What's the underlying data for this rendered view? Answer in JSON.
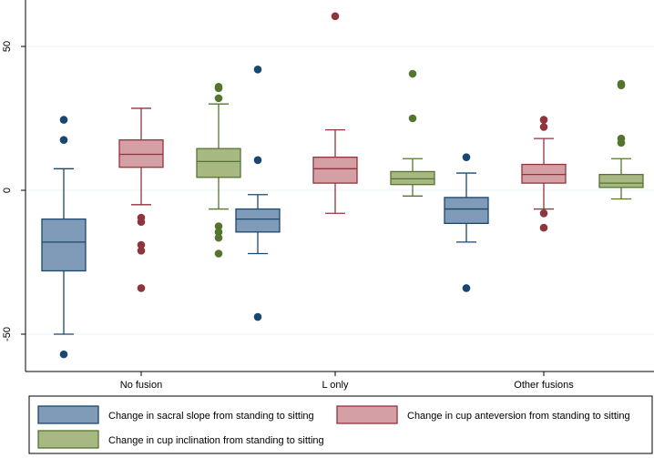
{
  "chart_data": {
    "type": "boxplot",
    "title": "",
    "xlabel": "",
    "ylabel": "",
    "ylim": [
      -62,
      66
    ],
    "yticks": [
      -50,
      0,
      50
    ],
    "grid": true,
    "legend_position": "bottom",
    "categories": [
      "No fusion",
      "L only",
      "Other fusions"
    ],
    "series": [
      {
        "name": "Change in sacral slope from standing to sitting",
        "fill": "#7f9bb7",
        "stroke": "#1a476f",
        "boxes": [
          {
            "whisker_low": -50,
            "q1": -28,
            "median": -18,
            "q3": -10,
            "whisker_high": 7.5,
            "outliers": [
              24.5,
              17.5,
              -57
            ]
          },
          {
            "whisker_low": -22,
            "q1": -14.5,
            "median": -10,
            "q3": -6.5,
            "whisker_high": -1.5,
            "outliers": [
              42,
              10.5,
              -44
            ]
          },
          {
            "whisker_low": -18,
            "q1": -11.5,
            "median": -6.5,
            "q3": -2.5,
            "whisker_high": 6,
            "outliers": [
              11.5,
              -34
            ]
          }
        ]
      },
      {
        "name": "Change in cup anteversion from standing to sitting",
        "fill": "#d4a0a6",
        "stroke": "#90353b",
        "boxes": [
          {
            "whisker_low": -5,
            "q1": 8,
            "median": 12.5,
            "q3": 17.5,
            "whisker_high": 28.5,
            "outliers": [
              -9.5,
              -11,
              -19,
              -21,
              -34
            ]
          },
          {
            "whisker_low": -8,
            "q1": 2.5,
            "median": 7.5,
            "q3": 11.5,
            "whisker_high": 21,
            "outliers": [
              60.5
            ]
          },
          {
            "whisker_low": -6.5,
            "q1": 2.5,
            "median": 5.5,
            "q3": 9,
            "whisker_high": 18,
            "outliers": [
              24.5,
              22,
              -8,
              -13
            ]
          }
        ]
      },
      {
        "name": "Change in cup inclination from standing to sitting",
        "fill": "#a7b883",
        "stroke": "#55752f",
        "boxes": [
          {
            "whisker_low": -6.5,
            "q1": 4.5,
            "median": 10,
            "q3": 14.5,
            "whisker_high": 30,
            "outliers": [
              36,
              35.5,
              32,
              -12.5,
              -14.5,
              -16.5,
              -22
            ]
          },
          {
            "whisker_low": -2,
            "q1": 2,
            "median": 4,
            "q3": 6.5,
            "whisker_high": 11,
            "outliers": [
              40.5,
              25
            ]
          },
          {
            "whisker_low": -3,
            "q1": 1,
            "median": 2.5,
            "q3": 5.5,
            "whisker_high": 11,
            "outliers": [
              37,
              36.5,
              18,
              16.5
            ]
          }
        ]
      }
    ]
  }
}
